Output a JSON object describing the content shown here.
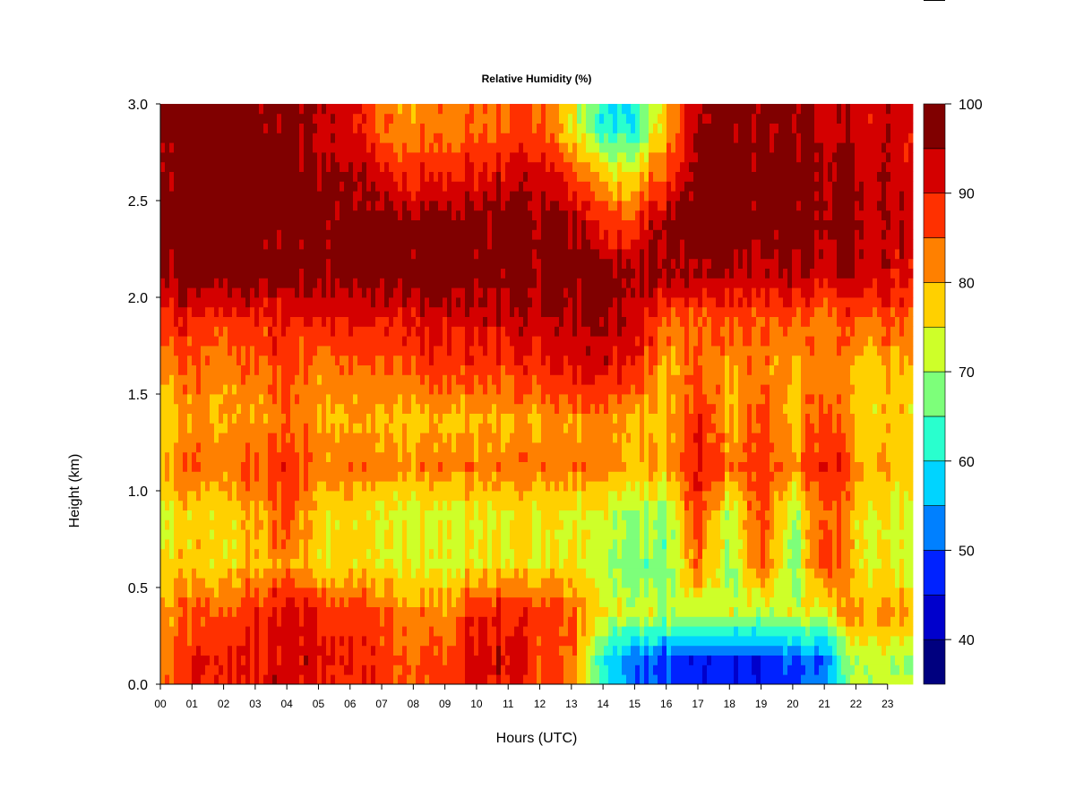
{
  "chart_data": {
    "type": "heatmap",
    "title": "Relative Humidity (%)",
    "xlabel": "Hours (UTC)",
    "ylabel": "Height (km)",
    "xlim": [
      0,
      23.8
    ],
    "ylim": [
      0,
      3.0
    ],
    "x_tick_labels": [
      "00",
      "01",
      "02",
      "03",
      "04",
      "05",
      "06",
      "07",
      "08",
      "09",
      "10",
      "11",
      "12",
      "13",
      "14",
      "15",
      "16",
      "17",
      "18",
      "19",
      "20",
      "21",
      "22",
      "23"
    ],
    "y_tick_labels": [
      "0.0",
      "0.5",
      "1.0",
      "1.5",
      "2.0",
      "2.5",
      "3.0"
    ],
    "x_hours": [
      0,
      1,
      2,
      3,
      4,
      5,
      6,
      7,
      8,
      9,
      10,
      11,
      12,
      13,
      14,
      15,
      16,
      17,
      18,
      19,
      20,
      21,
      22,
      23
    ],
    "heights_km": [
      0.125,
      0.375,
      0.625,
      0.875,
      1.125,
      1.375,
      1.625,
      1.875,
      2.125,
      2.375,
      2.625,
      2.875
    ],
    "values": [
      [
        85,
        88,
        90,
        90,
        93,
        92,
        90,
        88,
        85,
        85,
        93,
        92,
        88,
        85,
        60,
        52,
        48,
        47,
        46,
        47,
        48,
        52,
        72,
        72
      ],
      [
        82,
        84,
        86,
        88,
        92,
        90,
        88,
        86,
        82,
        80,
        90,
        90,
        88,
        86,
        74,
        73,
        72,
        72,
        72,
        72,
        72,
        74,
        82,
        82
      ],
      [
        78,
        77,
        76,
        78,
        82,
        77,
        77,
        75,
        74,
        72,
        76,
        77,
        76,
        76,
        70,
        68,
        67,
        85,
        67,
        88,
        66,
        90,
        76,
        75
      ],
      [
        75,
        76,
        76,
        80,
        86,
        78,
        77,
        75,
        73,
        72,
        75,
        76,
        76,
        75,
        72,
        70,
        70,
        88,
        70,
        88,
        68,
        88,
        77,
        74
      ],
      [
        80,
        84,
        82,
        85,
        88,
        84,
        84,
        83,
        82,
        82,
        84,
        84,
        84,
        83,
        82,
        80,
        80,
        92,
        82,
        90,
        80,
        92,
        82,
        80
      ],
      [
        78,
        80,
        79,
        81,
        84,
        80,
        81,
        79,
        78,
        78,
        80,
        80,
        81,
        82,
        82,
        80,
        78,
        90,
        78,
        88,
        77,
        88,
        78,
        78
      ],
      [
        83,
        84,
        82,
        84,
        86,
        83,
        85,
        84,
        85,
        86,
        88,
        87,
        90,
        91,
        91,
        90,
        80,
        85,
        80,
        84,
        79,
        84,
        78,
        80
      ],
      [
        90,
        88,
        87,
        88,
        90,
        90,
        91,
        90,
        91,
        91,
        93,
        94,
        95,
        95,
        95,
        94,
        85,
        85,
        85,
        86,
        84,
        84,
        85,
        86
      ],
      [
        98,
        98,
        98,
        98,
        98,
        98,
        98,
        98,
        98,
        98,
        98,
        98,
        98,
        98,
        97,
        97,
        96,
        95,
        94,
        94,
        94,
        94,
        94,
        93
      ],
      [
        98,
        98,
        98,
        98,
        98,
        98,
        98,
        98,
        98,
        98,
        98,
        98,
        98,
        97,
        87,
        88,
        98,
        98,
        98,
        98,
        98,
        97,
        96,
        95
      ],
      [
        98,
        98,
        98,
        98,
        98,
        97,
        96,
        92,
        88,
        88,
        92,
        93,
        94,
        88,
        78,
        77,
        88,
        98,
        98,
        98,
        98,
        97,
        95,
        94
      ],
      [
        98,
        98,
        98,
        98,
        97,
        95,
        93,
        84,
        82,
        82,
        84,
        86,
        86,
        76,
        60,
        62,
        80,
        95,
        97,
        97,
        96,
        94,
        93,
        93
      ]
    ],
    "colorbar": {
      "levels": [
        35,
        40,
        45,
        50,
        55,
        60,
        65,
        70,
        75,
        80,
        85,
        90,
        95,
        100
      ],
      "colors": [
        "#00007F",
        "#0000CC",
        "#0022FF",
        "#0080FF",
        "#00D4FF",
        "#29FFCE",
        "#7DFF7A",
        "#CEFF29",
        "#FFD000",
        "#FF8000",
        "#FF3000",
        "#D40000",
        "#800000"
      ],
      "tick_labels": [
        "40",
        "50",
        "60",
        "70",
        "80",
        "90",
        "100"
      ],
      "tick_values": [
        40,
        50,
        60,
        70,
        80,
        90,
        100
      ]
    }
  }
}
